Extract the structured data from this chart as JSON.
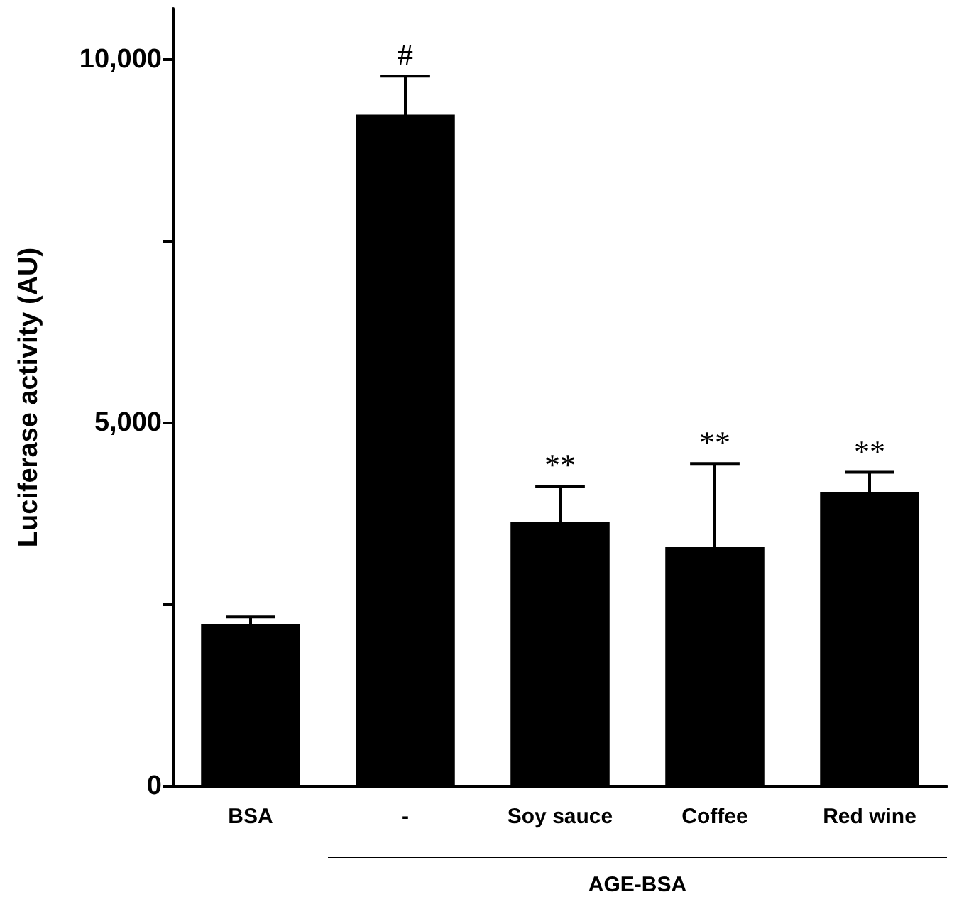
{
  "chart_data": {
    "type": "bar",
    "categories": [
      "BSA",
      "-",
      "Soy sauce",
      "Coffee",
      "Red wine"
    ],
    "values": [
      2230,
      9240,
      3640,
      3290,
      4050
    ],
    "errors": [
      100,
      530,
      490,
      1150,
      270
    ],
    "color": "#000000",
    "ylabel": "Luciferase activity (AU)",
    "xlabel": "AGE-BSA",
    "ylim": [
      0,
      10700
    ],
    "yticks": [
      0,
      {
        "value": 2500,
        "label": null
      },
      {
        "value": 5000,
        "label": "5,000"
      },
      {
        "value": 7500,
        "label": null
      },
      {
        "value": 10000,
        "label": "10,000"
      }
    ],
    "annotations": [
      {
        "text": "#",
        "x": "-",
        "y": 9240
      },
      {
        "text": "**",
        "x": "Soy sauce",
        "y": 3640
      },
      {
        "text": "**",
        "x": "Coffee",
        "y": 3290
      },
      {
        "text": "**",
        "x": "Red wine",
        "y": 4050
      }
    ]
  }
}
